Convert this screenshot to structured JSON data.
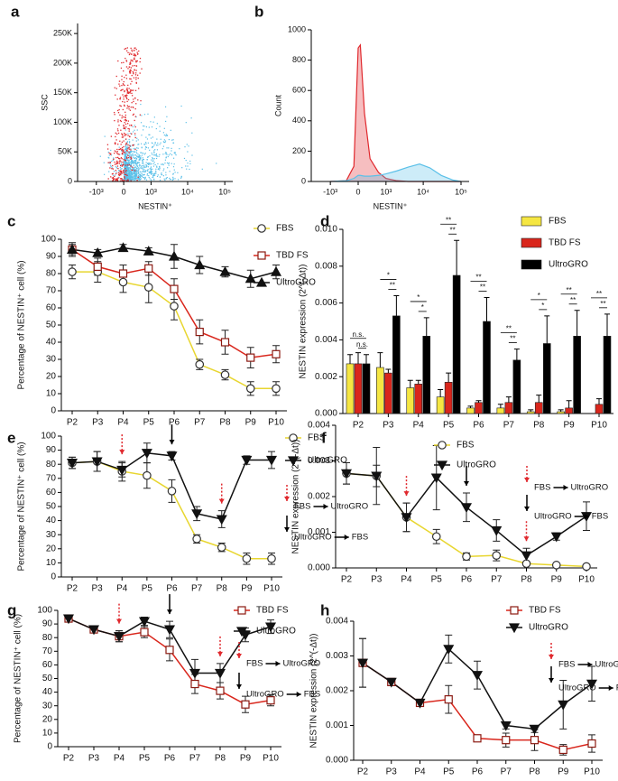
{
  "chart_data": [
    {
      "panel": "a",
      "type": "scatter",
      "xlabel": "NESTIN⁺",
      "ylabel": "SSC",
      "xscale": "asinh",
      "xlim": [
        -3300,
        164000
      ],
      "xticks": [
        {
          "value": -1000,
          "label": "-10³"
        },
        0,
        {
          "value": 1000,
          "label": "10³"
        },
        {
          "value": 10000,
          "label": "10⁴"
        },
        {
          "value": 100000,
          "label": "10⁵"
        }
      ],
      "ylim": [
        0,
        267000
      ],
      "yticks": [
        0,
        {
          "value": 50000,
          "label": "50K"
        },
        {
          "value": 100000,
          "label": "100K"
        },
        {
          "value": 150000,
          "label": "150K"
        },
        {
          "value": 200000,
          "label": "200K"
        },
        {
          "value": 250000,
          "label": "250K"
        }
      ],
      "colors": [
        "#5bc0e8",
        "#e0292e"
      ]
    },
    {
      "panel": "b",
      "type": "area",
      "xlabel": "NESTIN⁺",
      "ylabel": "Count",
      "xscale": "asinh",
      "xlim": [
        -3300,
        164000
      ],
      "xticks": [
        {
          "value": -1000,
          "label": "-10³"
        },
        0,
        {
          "value": 1000,
          "label": "10³"
        },
        {
          "value": 10000,
          "label": "10⁴"
        },
        {
          "value": 100000,
          "label": "10⁵"
        }
      ],
      "ylim": [
        0,
        1000
      ],
      "yticks": [
        0,
        200,
        400,
        600,
        800,
        1000
      ],
      "x": [
        -1000,
        -300,
        -100,
        0,
        50,
        150,
        300,
        600,
        1000,
        2000,
        4000,
        8000,
        15000,
        30000,
        60000,
        100000
      ],
      "series": [
        {
          "color": "#e0292e",
          "values": [
            0,
            5,
            100,
            880,
            900,
            450,
            150,
            60,
            20,
            5,
            0,
            0,
            0,
            0,
            0,
            0
          ]
        },
        {
          "color": "#5bc0e8",
          "values": [
            0,
            5,
            20,
            40,
            40,
            35,
            35,
            40,
            50,
            70,
            95,
            115,
            90,
            40,
            10,
            0
          ]
        }
      ]
    },
    {
      "panel": "c",
      "type": "line",
      "ylabel": "Percentage of NESTIN⁺ cell (%)",
      "categories": [
        "P2",
        "P3",
        "P4",
        "P5",
        "P6",
        "P7",
        "P8",
        "P9",
        "P10"
      ],
      "ylim": [
        0,
        100
      ],
      "yticks": [
        0,
        10,
        20,
        30,
        40,
        50,
        60,
        70,
        80,
        90,
        100
      ],
      "series": [
        {
          "name": "FBS",
          "color": "#e8d630",
          "marker": "circle",
          "marker_fill": "#ffffff",
          "marker_edge": "#333333",
          "values": [
            81,
            81,
            75,
            72,
            61,
            27,
            21,
            13,
            13
          ],
          "errors": [
            4,
            6,
            6,
            9,
            8,
            3,
            3,
            4,
            4
          ]
        },
        {
          "name": "TBD FS",
          "color": "#d9261c",
          "marker": "square",
          "marker_fill": "#ffffff",
          "marker_edge": "#8b1a12",
          "values": [
            94,
            84,
            80,
            83,
            71,
            46,
            40,
            31,
            33
          ],
          "errors": [
            3,
            5,
            5,
            4,
            6,
            7,
            7,
            6,
            5
          ]
        },
        {
          "name": "UltroGRO",
          "color": "#111111",
          "marker": "triangle-up",
          "marker_fill": "#111111",
          "marker_edge": "#111111",
          "values": [
            94,
            92,
            95,
            93,
            90,
            85,
            81,
            77,
            81
          ],
          "errors": [
            4,
            2,
            2,
            2,
            7,
            5,
            3,
            5,
            4
          ]
        }
      ]
    },
    {
      "panel": "d",
      "type": "bar",
      "ylabel": "NESTIN expression (2^(-Δt))",
      "categories": [
        "P2",
        "P3",
        "P4",
        "P5",
        "P6",
        "P7",
        "P8",
        "P9",
        "P10"
      ],
      "ylim": [
        0,
        0.01
      ],
      "yticks": [
        {
          "value": 0,
          "label": "0.000"
        },
        {
          "value": 0.002,
          "label": "0.002"
        },
        {
          "value": 0.004,
          "label": "0.004"
        },
        {
          "value": 0.006,
          "label": "0.006"
        },
        {
          "value": 0.008,
          "label": "0.008"
        },
        {
          "value": 0.01,
          "label": "0.010"
        }
      ],
      "series": [
        {
          "name": "FBS",
          "color": "#f5e642",
          "values": [
            0.0027,
            0.0025,
            0.0014,
            0.0009,
            0.0003,
            0.0003,
            0.0001,
            0.0001,
            0.0
          ],
          "errors": [
            0.0005,
            0.0008,
            0.0004,
            0.0004,
            0.0001,
            0.0002,
            0.0001,
            0.0001,
            0.0
          ]
        },
        {
          "name": "TBD FS",
          "color": "#d9261c",
          "values": [
            0.0027,
            0.0022,
            0.0016,
            0.0017,
            0.0006,
            0.0006,
            0.0006,
            0.0003,
            0.0005
          ],
          "errors": [
            0.0006,
            0.0002,
            0.0002,
            0.0005,
            0.0001,
            0.0003,
            0.0004,
            0.0004,
            0.0003
          ]
        },
        {
          "name": "UltroGRO",
          "color": "#000000",
          "values": [
            0.0027,
            0.0053,
            0.0042,
            0.0075,
            0.005,
            0.0029,
            0.0038,
            0.0042,
            0.0042
          ],
          "errors": [
            0.0005,
            0.0011,
            0.001,
            0.0019,
            0.0013,
            0.0006,
            0.0015,
            0.0014,
            0.0012
          ]
        }
      ],
      "significance": [
        [
          "n.s.",
          "n.s."
        ],
        [
          "*",
          "**"
        ],
        [
          "*",
          "*"
        ],
        [
          "**",
          "**"
        ],
        [
          "**",
          "**"
        ],
        [
          "**",
          "**"
        ],
        [
          "*",
          "*"
        ],
        [
          "**",
          "**"
        ],
        [
          "**",
          "**"
        ]
      ]
    },
    {
      "panel": "e",
      "type": "line",
      "ylabel": "Percentage of NESTIN⁺ cell (%)",
      "categories": [
        "P2",
        "P3",
        "P4",
        "P5",
        "P6",
        "P7",
        "P8",
        "P9",
        "P10"
      ],
      "ylim": [
        0,
        100
      ],
      "yticks": [
        0,
        10,
        20,
        30,
        40,
        50,
        60,
        70,
        80,
        90,
        100
      ],
      "series": [
        {
          "name": "FBS",
          "color": "#e8d630",
          "marker": "circle",
          "marker_fill": "#ffffff",
          "marker_edge": "#333333",
          "values": [
            81,
            82,
            75,
            72,
            61,
            27,
            21,
            13,
            13
          ],
          "errors": [
            4,
            7,
            7,
            9,
            8,
            3,
            3,
            4,
            4
          ]
        },
        {
          "name": "UltroGRO",
          "color": "#111111",
          "marker": "triangle-down",
          "marker_fill": "#111111",
          "marker_edge": "#111111",
          "values": [
            81,
            82,
            76,
            88,
            86,
            45,
            41,
            83,
            83
          ],
          "errors": [
            4,
            7,
            5,
            7,
            3,
            5,
            6,
            3,
            6
          ]
        }
      ],
      "switches": [
        {
          "from": "FBS",
          "to": "UltroGRO",
          "color": "#e0292e",
          "dashed": true,
          "at": [
            "P4",
            "P8"
          ]
        },
        {
          "from": "UltroGRO",
          "to": "FBS",
          "color": "#000000",
          "dashed": false,
          "at": [
            "P6"
          ]
        }
      ]
    },
    {
      "panel": "f",
      "type": "line",
      "ylabel": "NESTIN expression (2^(-Δt))",
      "categories": [
        "P2",
        "P3",
        "P4",
        "P5",
        "P6",
        "P7",
        "P8",
        "P9",
        "P10"
      ],
      "ylim": [
        0,
        0.004
      ],
      "yticks": [
        {
          "value": 0,
          "label": "0.000"
        },
        {
          "value": 0.001,
          "label": "0.001"
        },
        {
          "value": 0.002,
          "label": "0.002"
        },
        {
          "value": 0.003,
          "label": "0.003"
        },
        {
          "value": 0.004,
          "label": "0.004"
        }
      ],
      "series": [
        {
          "name": "FBS",
          "color": "#e8d630",
          "marker": "circle",
          "marker_fill": "#ffffff",
          "marker_edge": "#333333",
          "values": [
            0.00265,
            0.00258,
            0.00142,
            0.00088,
            0.00032,
            0.00035,
            0.00012,
            8e-05,
            4e-05
          ],
          "errors": [
            0.0003,
            0.0003,
            0.0004,
            0.0002,
            0.0001,
            0.00015,
            5e-05,
            3e-05,
            2e-05
          ]
        },
        {
          "name": "UltroGRO",
          "color": "#111111",
          "marker": "triangle-down",
          "marker_fill": "#111111",
          "marker_edge": "#111111",
          "values": [
            0.00265,
            0.00258,
            0.00142,
            0.00253,
            0.0017,
            0.00105,
            0.00035,
            0.00088,
            0.00145
          ],
          "errors": [
            0.0003,
            0.0008,
            0.0004,
            0.0009,
            0.0004,
            0.0003,
            0.0002,
            0.0001,
            0.0004
          ]
        }
      ],
      "switches": [
        {
          "from": "FBS",
          "to": "UltroGRO",
          "color": "#e0292e",
          "dashed": true,
          "at": [
            "P4",
            "P8"
          ]
        },
        {
          "from": "UltroGRO",
          "to": "FBS",
          "color": "#000000",
          "dashed": false,
          "at": [
            "P6"
          ]
        }
      ]
    },
    {
      "panel": "g",
      "type": "line",
      "ylabel": "Percentage of NESTIN⁺ cell (%)",
      "categories": [
        "P2",
        "P3",
        "P4",
        "P5",
        "P6",
        "P7",
        "P8",
        "P9",
        "P10"
      ],
      "ylim": [
        0,
        100
      ],
      "yticks": [
        0,
        10,
        20,
        30,
        40,
        50,
        60,
        70,
        80,
        90,
        100
      ],
      "series": [
        {
          "name": "TBD FS",
          "color": "#d9261c",
          "marker": "square",
          "marker_fill": "#ffffff",
          "marker_edge": "#8b1a12",
          "values": [
            94,
            86,
            81,
            84,
            71,
            46,
            41,
            31,
            34
          ],
          "errors": [
            2,
            2,
            4,
            4,
            8,
            7,
            6,
            6,
            4
          ]
        },
        {
          "name": "UltroGRO",
          "color": "#111111",
          "marker": "triangle-down",
          "marker_fill": "#111111",
          "marker_edge": "#111111",
          "values": [
            94,
            86,
            81,
            92,
            86,
            54,
            54,
            82,
            88
          ],
          "errors": [
            2,
            2,
            4,
            3,
            6,
            10,
            7,
            5,
            5
          ]
        }
      ],
      "switches": [
        {
          "from": "FBS",
          "to": "UltroGRO",
          "color": "#e0292e",
          "dashed": true,
          "at": [
            "P4",
            "P8"
          ]
        },
        {
          "from": "UltroGRO",
          "to": "FBS",
          "color": "#000000",
          "dashed": false,
          "at": [
            "P6"
          ]
        }
      ]
    },
    {
      "panel": "h",
      "type": "line",
      "ylabel": "NESTIN expression (2^(-Δt))",
      "categories": [
        "P2",
        "P3",
        "P4",
        "P5",
        "P6",
        "P7",
        "P8",
        "P9",
        "P10"
      ],
      "ylim": [
        0,
        0.004
      ],
      "yticks": [
        {
          "value": 0,
          "label": "0.000"
        },
        {
          "value": 0.001,
          "label": "0.001"
        },
        {
          "value": 0.002,
          "label": "0.002"
        },
        {
          "value": 0.003,
          "label": "0.003"
        },
        {
          "value": 0.004,
          "label": "0.004"
        }
      ],
      "series": [
        {
          "name": "TBD FS",
          "color": "#d9261c",
          "marker": "square",
          "marker_fill": "#ffffff",
          "marker_edge": "#8b1a12",
          "values": [
            0.0028,
            0.00225,
            0.00165,
            0.00175,
            0.00063,
            0.00058,
            0.00058,
            0.0003,
            0.00048
          ],
          "errors": [
            0.0007,
            0.0001,
            0.0001,
            0.0004,
            5e-05,
            0.0002,
            0.0003,
            0.00015,
            0.00025
          ]
        },
        {
          "name": "UltroGRO",
          "color": "#111111",
          "marker": "triangle-down",
          "marker_fill": "#111111",
          "marker_edge": "#111111",
          "values": [
            0.0028,
            0.00225,
            0.00165,
            0.0032,
            0.00245,
            0.001,
            0.0009,
            0.0016,
            0.0022
          ],
          "errors": [
            0.0007,
            0.0001,
            0.0001,
            0.0004,
            0.0004,
            0.0001,
            0.0001,
            0.0007,
            0.0005
          ]
        }
      ],
      "switches": [
        {
          "from": "FBS",
          "to": "UltroGRO",
          "color": "#e0292e",
          "dashed": true
        },
        {
          "from": "UltroGRO",
          "to": "FBS",
          "color": "#000000",
          "dashed": false
        }
      ]
    }
  ]
}
